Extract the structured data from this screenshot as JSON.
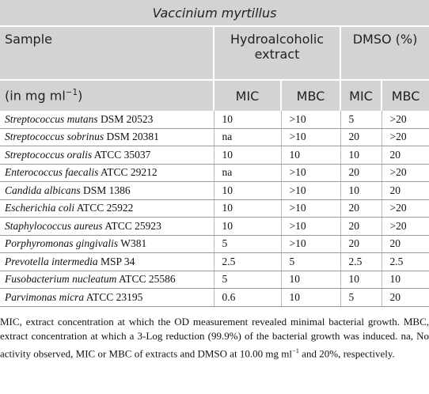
{
  "table": {
    "title": "Vaccinium myrtillus",
    "header": {
      "sample": "Sample",
      "group1": "Hydroalcoholic extract",
      "group2": "DMSO (%)",
      "unit": {
        "text": "(in mg ml",
        "sup": "−1",
        "close": ")"
      },
      "columns": [
        "MIC",
        "MBC",
        "MIC",
        "MBC"
      ]
    },
    "rows": [
      {
        "species": "Streptococcus mutans",
        "strain": "DSM 20523",
        "values": [
          "10",
          ">10",
          "5",
          ">20"
        ]
      },
      {
        "species": "Streptococcus sobrinus",
        "strain": "DSM 20381",
        "values": [
          "na",
          ">10",
          "20",
          ">20"
        ]
      },
      {
        "species": "Streptococcus oralis",
        "strain": "ATCC 35037",
        "values": [
          "10",
          "10",
          "10",
          "20"
        ]
      },
      {
        "species": "Enterococcus faecalis",
        "strain": "ATCC 29212",
        "values": [
          "na",
          ">10",
          "20",
          ">20"
        ]
      },
      {
        "species": "Candida albicans",
        "strain": "DSM 1386",
        "values": [
          "10",
          ">10",
          "10",
          "20"
        ]
      },
      {
        "species": "Escherichia coli",
        "strain": "ATCC 25922",
        "values": [
          "10",
          ">10",
          "20",
          ">20"
        ]
      },
      {
        "species": "Staphylococcus aureus",
        "strain": "ATCC 25923",
        "values": [
          "10",
          ">10",
          "20",
          ">20"
        ]
      },
      {
        "species": "Porphyromonas gingivalis",
        "strain": "W381",
        "values": [
          "5",
          ">10",
          "20",
          "20"
        ]
      },
      {
        "species": "Prevotella intermedia",
        "strain": "MSP 34",
        "values": [
          "2.5",
          "5",
          "2.5",
          "2.5"
        ]
      },
      {
        "species": "Fusobacterium nucleatum",
        "strain": "ATCC 25586",
        "values": [
          "5",
          "10",
          "10",
          "10"
        ]
      },
      {
        "species": "Parvimonas micra",
        "strain": "ATCC 23195",
        "values": [
          "0.6",
          "10",
          "5",
          "20"
        ]
      }
    ],
    "footnote": {
      "text": "MIC, extract concentration at which the OD measurement revealed minimal bacterial growth. MBC, extract concentration at which a 3-Log reduction (99.9%) of the bacterial growth was induced. na, No activity observed, MIC or MBC of extracts and DMSO at 10.00 mg ml",
      "sup": "−1",
      "end": " and 20%, respectively."
    }
  }
}
